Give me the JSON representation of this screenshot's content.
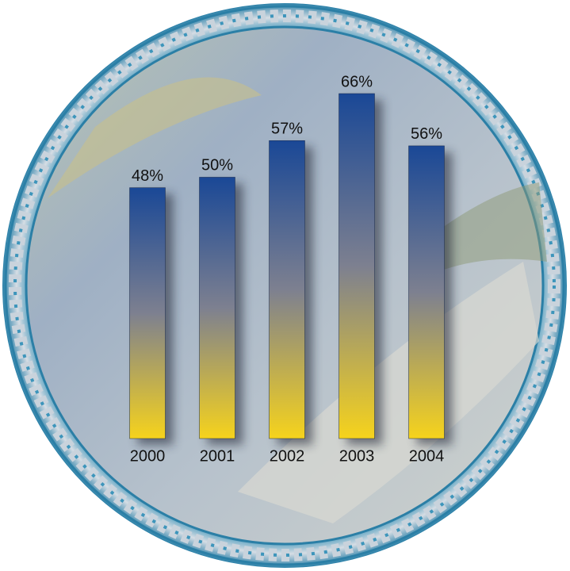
{
  "chart_data": {
    "type": "bar",
    "categories": [
      "2000",
      "2001",
      "2002",
      "2003",
      "2004"
    ],
    "values": [
      48,
      50,
      57,
      66,
      56
    ],
    "value_labels": [
      "48%",
      "50%",
      "57%",
      "66%",
      "56%"
    ],
    "colors": [
      "#1a4896",
      "#f6d31c"
    ]
  }
}
